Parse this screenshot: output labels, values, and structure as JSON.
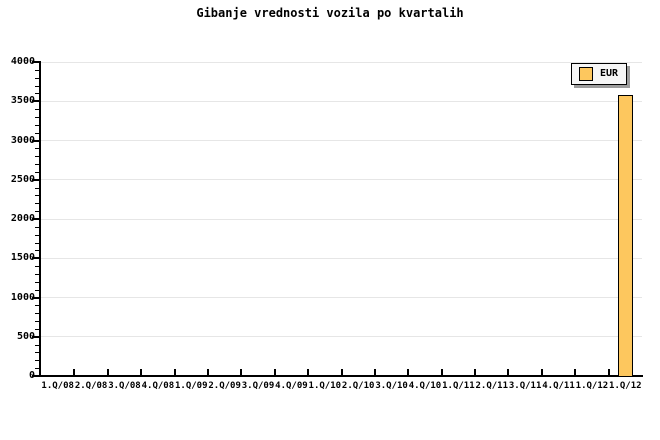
{
  "title": "Gibanje vrednosti vozila po kvartalih",
  "colors": {
    "background": "#FFFFFF",
    "axis": "#000000",
    "grid": "#E6E6E6",
    "bar_fill": "#FDC75E",
    "bar_border": "#000000",
    "legend_bg": "#F6F6F6",
    "legend_border": "#000000",
    "legend_shadow": "#9C9C9C",
    "text": "#000000"
  },
  "legend": {
    "position": "top-right",
    "items": [
      {
        "label": "EUR",
        "swatch_color": "#FDC75E"
      }
    ]
  },
  "chart_data": {
    "type": "bar",
    "title": "Gibanje vrednosti vozila po kvartalih",
    "categories": [
      "1.Q/08",
      "2.Q/08",
      "3.Q/08",
      "4.Q/08",
      "1.Q/09",
      "2.Q/09",
      "3.Q/09",
      "4.Q/09",
      "1.Q/10",
      "2.Q/10",
      "3.Q/10",
      "4.Q/10",
      "1.Q/11",
      "2.Q/11",
      "3.Q/11",
      "4.Q/11",
      "1.Q/12",
      "1.Q/12"
    ],
    "series": [
      {
        "name": "EUR",
        "color": "#FDC75E",
        "values": [
          null,
          null,
          null,
          null,
          null,
          null,
          null,
          null,
          null,
          null,
          null,
          null,
          null,
          null,
          null,
          null,
          null,
          3580
        ]
      }
    ],
    "xlabel": "",
    "ylabel": "",
    "ylim": [
      0,
      4000
    ],
    "ytick_major_interval": 500,
    "ytick_minor_interval": 100,
    "ytick_labels": [
      "0",
      "500",
      "1000",
      "1500",
      "2000",
      "2500",
      "3000",
      "3500",
      "4000"
    ],
    "grid": "horizontal-major",
    "legend_position": "top-right"
  }
}
